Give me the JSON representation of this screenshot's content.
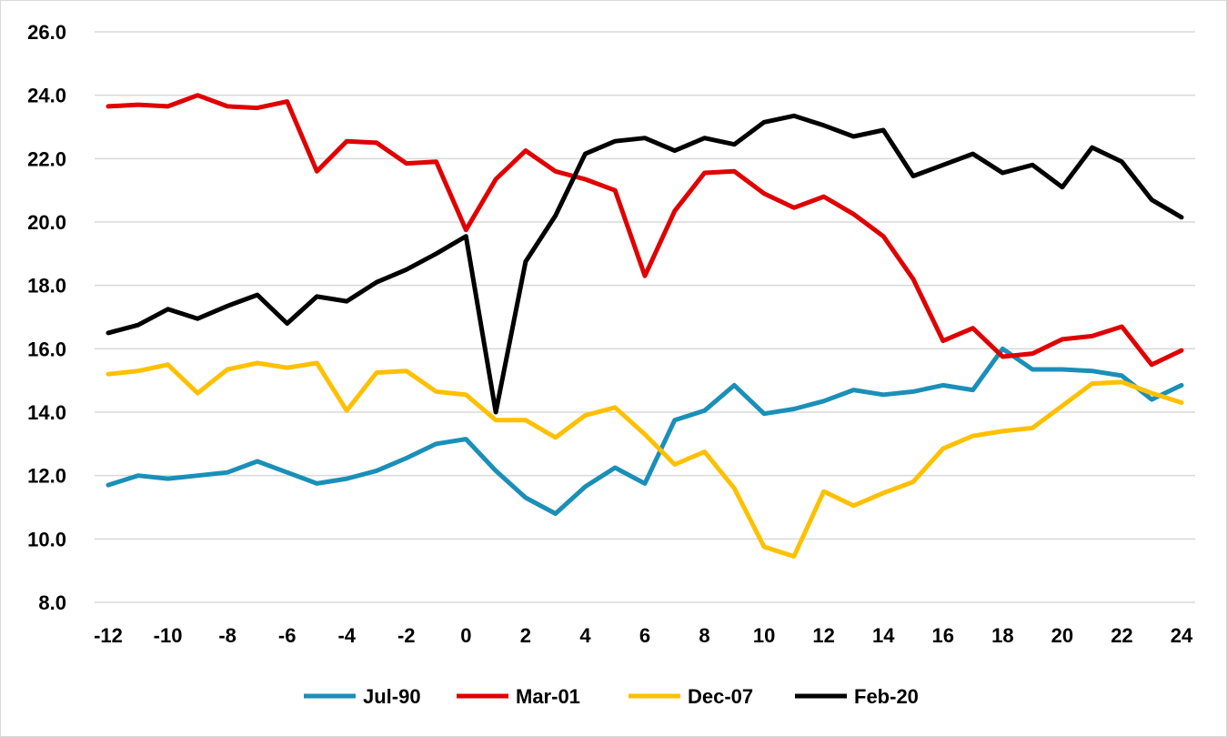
{
  "chart_data": {
    "type": "line",
    "title": "",
    "xlabel": "",
    "ylabel": "",
    "x": [
      -12,
      -11,
      -10,
      -9,
      -8,
      -7,
      -6,
      -5,
      -4,
      -3,
      -2,
      -1,
      0,
      1,
      2,
      3,
      4,
      5,
      6,
      7,
      8,
      9,
      10,
      11,
      12,
      13,
      14,
      15,
      16,
      17,
      18,
      19,
      20,
      21,
      22,
      23,
      24
    ],
    "x_ticks": [
      "-12",
      "-10",
      "-8",
      "-6",
      "-4",
      "-2",
      "0",
      "2",
      "4",
      "6",
      "8",
      "10",
      "12",
      "14",
      "16",
      "18",
      "20",
      "22",
      "24"
    ],
    "x_tick_values": [
      -12,
      -10,
      -8,
      -6,
      -4,
      -2,
      0,
      2,
      4,
      6,
      8,
      10,
      12,
      14,
      16,
      18,
      20,
      22,
      24
    ],
    "xlim": [
      -12,
      24
    ],
    "y_ticks": [
      "8.0",
      "10.0",
      "12.0",
      "14.0",
      "16.0",
      "18.0",
      "20.0",
      "22.0",
      "24.0",
      "26.0"
    ],
    "y_tick_values": [
      8,
      10,
      12,
      14,
      16,
      18,
      20,
      22,
      24,
      26
    ],
    "ylim": [
      8,
      26
    ],
    "grid": "horizontal",
    "legend_position": "bottom",
    "series": [
      {
        "name": "Jul-90",
        "color": "#1a8fb8",
        "values": [
          11.7,
          12.0,
          11.9,
          12.0,
          12.1,
          12.45,
          12.1,
          11.75,
          11.9,
          12.15,
          12.55,
          13.0,
          13.15,
          12.15,
          11.3,
          10.8,
          11.65,
          12.25,
          11.75,
          13.75,
          14.05,
          14.85,
          13.95,
          14.1,
          14.35,
          14.7,
          14.55,
          14.65,
          14.85,
          14.7,
          16.0,
          15.35,
          15.35,
          15.3,
          15.15,
          14.4,
          14.85
        ]
      },
      {
        "name": "Mar-01",
        "color": "#e00000",
        "values": [
          23.65,
          23.7,
          23.65,
          24.0,
          23.65,
          23.6,
          23.8,
          21.6,
          22.55,
          22.5,
          21.85,
          21.9,
          19.75,
          21.35,
          22.25,
          21.6,
          21.35,
          21.0,
          18.3,
          20.35,
          21.55,
          21.6,
          20.9,
          20.45,
          20.8,
          20.25,
          19.55,
          18.2,
          16.25,
          16.65,
          15.75,
          15.85,
          16.3,
          16.4,
          16.7,
          15.5,
          15.95
        ]
      },
      {
        "name": "Dec-07",
        "color": "#ffc000",
        "values": [
          15.2,
          15.3,
          15.5,
          14.6,
          15.35,
          15.55,
          15.4,
          15.55,
          14.05,
          15.25,
          15.3,
          14.65,
          14.55,
          13.75,
          13.75,
          13.2,
          13.9,
          14.15,
          13.3,
          12.35,
          12.75,
          11.6,
          9.75,
          9.45,
          11.5,
          11.05,
          11.45,
          11.8,
          12.85,
          13.25,
          13.4,
          13.5,
          14.2,
          14.9,
          14.95,
          14.6,
          14.3
        ]
      },
      {
        "name": "Feb-20",
        "color": "#000000",
        "values": [
          16.5,
          16.75,
          17.25,
          16.95,
          17.35,
          17.7,
          16.8,
          17.65,
          17.5,
          18.1,
          18.5,
          19.0,
          19.55,
          14.0,
          18.75,
          20.2,
          22.15,
          22.55,
          22.65,
          22.25,
          22.65,
          22.45,
          23.15,
          23.35,
          23.05,
          22.7,
          22.9,
          21.45,
          21.8,
          22.15,
          21.55,
          21.8,
          21.1,
          22.35,
          21.9,
          20.7,
          20.15
        ]
      }
    ]
  }
}
